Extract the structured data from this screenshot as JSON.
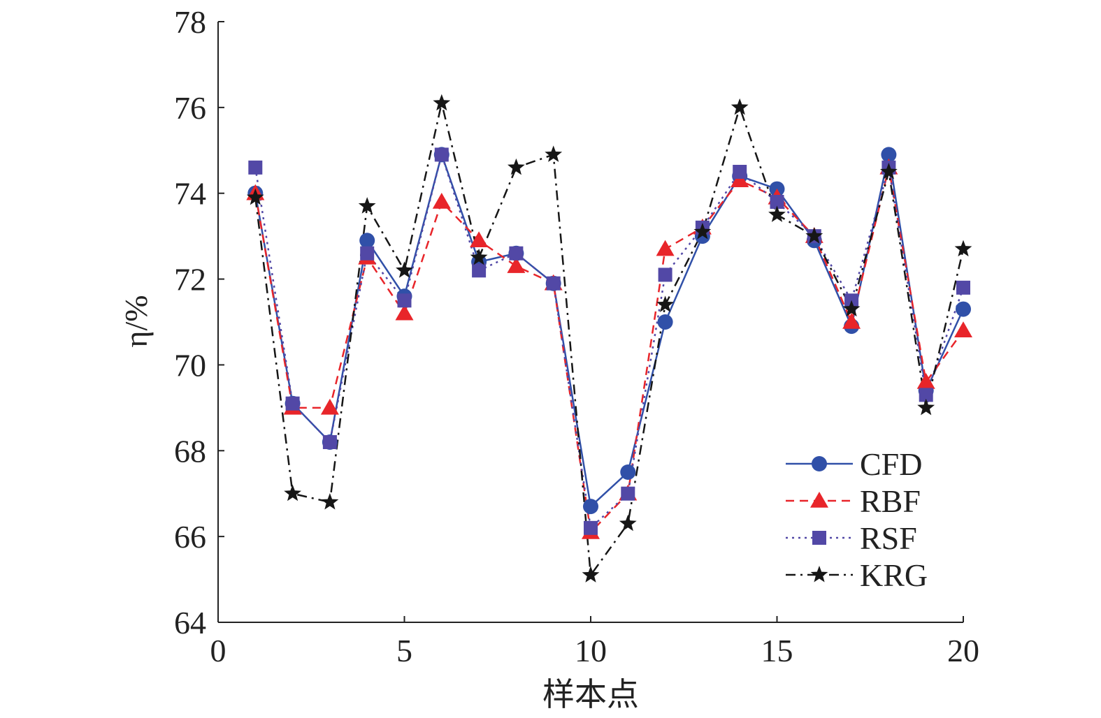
{
  "chart_data": {
    "type": "line",
    "xlabel": "样本点",
    "ylabel": "η/%",
    "xlim": [
      0,
      20
    ],
    "ylim": [
      64,
      78
    ],
    "xticks": [
      0,
      5,
      10,
      15,
      20
    ],
    "yticks": [
      64,
      66,
      68,
      70,
      72,
      74,
      76,
      78
    ],
    "grid": false,
    "legend_position": "bottom-right",
    "x": [
      1,
      2,
      3,
      4,
      5,
      6,
      7,
      8,
      9,
      10,
      11,
      12,
      13,
      14,
      15,
      16,
      17,
      18,
      19,
      20
    ],
    "series": [
      {
        "name": "CFD",
        "color": "#3050a8",
        "dash": "solid",
        "marker": "circle",
        "values": [
          74.0,
          69.1,
          68.2,
          72.9,
          71.6,
          74.9,
          72.4,
          72.6,
          71.9,
          66.7,
          67.5,
          71.0,
          73.0,
          74.4,
          74.1,
          72.9,
          70.9,
          74.9,
          69.4,
          71.3
        ]
      },
      {
        "name": "RBF",
        "color": "#e8252a",
        "dash": "dashed",
        "marker": "triangle",
        "values": [
          74.0,
          69.0,
          69.0,
          72.5,
          71.2,
          73.8,
          72.9,
          72.3,
          71.9,
          66.1,
          67.0,
          72.7,
          73.2,
          74.3,
          73.9,
          73.0,
          71.0,
          74.6,
          69.6,
          70.8
        ]
      },
      {
        "name": "RSF",
        "color": "#5248a6",
        "dash": "dotted",
        "marker": "square",
        "values": [
          74.6,
          69.1,
          68.2,
          72.6,
          71.5,
          74.9,
          72.2,
          72.6,
          71.9,
          66.2,
          67.0,
          72.1,
          73.2,
          74.5,
          73.8,
          73.0,
          71.5,
          74.6,
          69.3,
          71.8
        ]
      },
      {
        "name": "KRG",
        "color": "#161616",
        "dash": "dashdot",
        "marker": "star",
        "values": [
          73.9,
          67.0,
          66.8,
          73.7,
          72.2,
          76.1,
          72.5,
          74.6,
          74.9,
          65.1,
          66.3,
          71.4,
          73.1,
          76.0,
          73.5,
          73.0,
          71.3,
          74.5,
          69.0,
          72.7
        ]
      }
    ]
  }
}
